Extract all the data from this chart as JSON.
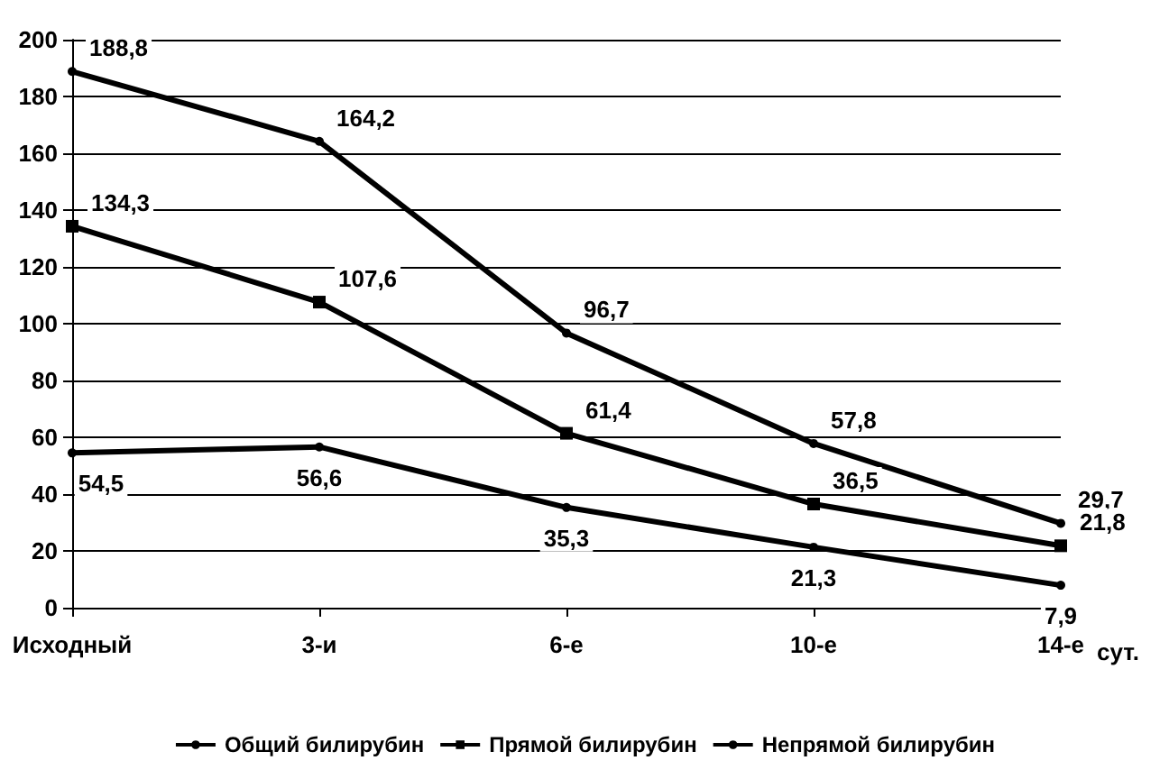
{
  "chart_data": {
    "type": "line",
    "xlabel": "сут.",
    "categories": [
      "Исходный",
      "3-и",
      "6-е",
      "10-е",
      "14-е"
    ],
    "series": [
      {
        "name": "Общий билирубин",
        "color": "#000000",
        "marker": "circle",
        "values": [
          188.8,
          164.2,
          96.7,
          57.8,
          29.7
        ],
        "value_labels": [
          "188,8",
          "164,2",
          "96,7",
          "57,8",
          "29,7"
        ]
      },
      {
        "name": "Прямой билирубин",
        "color": "#000000",
        "marker": "square",
        "values": [
          134.3,
          107.6,
          61.4,
          36.5,
          21.8
        ],
        "value_labels": [
          "134,3",
          "107,6",
          "61,4",
          "36,5",
          "21,8"
        ]
      },
      {
        "name": "Непрямой билирубин",
        "color": "#000000",
        "marker": "circle",
        "values": [
          54.5,
          56.6,
          35.3,
          21.3,
          7.9
        ],
        "value_labels": [
          "54,5",
          "56,6",
          "35,3",
          "21,3",
          "7,9"
        ]
      }
    ],
    "ylim": [
      0,
      200
    ],
    "yticks": [
      0,
      20,
      40,
      60,
      80,
      100,
      120,
      140,
      160,
      180,
      200
    ],
    "grid": "y",
    "legend": "bottom",
    "line_style": "solid"
  }
}
